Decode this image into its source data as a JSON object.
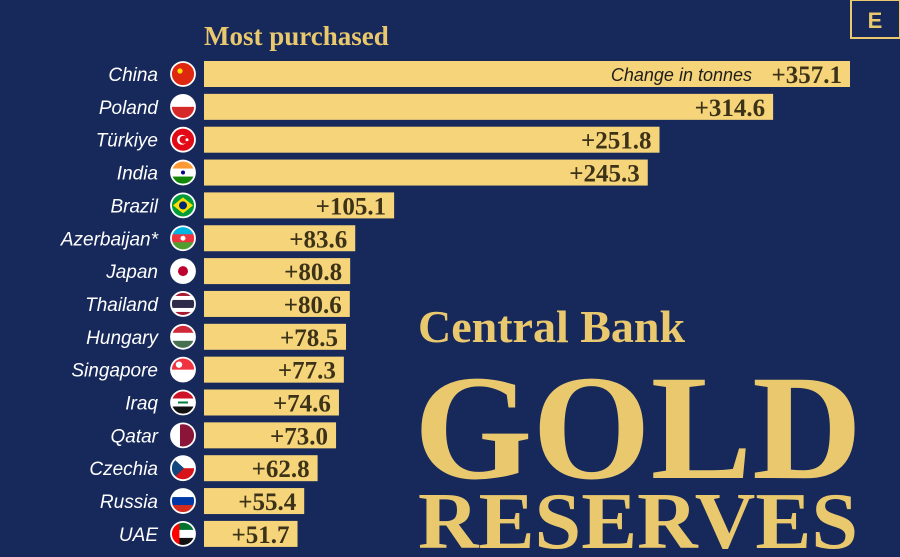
{
  "brand": {
    "logo_letter": "E"
  },
  "colors": {
    "background": "#17295a",
    "bar": "#f6d57a",
    "accent": "#eac96e"
  },
  "headline": "Most purchased",
  "title": {
    "line1": "Central Bank",
    "line2": "GOLD",
    "line3": "RESERVES"
  },
  "chart_data": {
    "type": "bar",
    "orientation": "horizontal",
    "title": "Most purchased",
    "value_label": "Change in tonnes",
    "categories": [
      "China",
      "Poland",
      "Türkiye",
      "India",
      "Brazil",
      "Azerbaijan*",
      "Japan",
      "Thailand",
      "Hungary",
      "Singapore",
      "Iraq",
      "Qatar",
      "Czechia",
      "Russia",
      "UAE"
    ],
    "values": [
      357.1,
      314.6,
      251.8,
      245.3,
      105.1,
      83.6,
      80.8,
      80.6,
      78.5,
      77.3,
      74.6,
      73.0,
      62.8,
      55.4,
      51.7
    ],
    "value_labels": [
      "+357.1",
      "+314.6",
      "+251.8",
      "+245.3",
      "+105.1",
      "+83.6",
      "+80.8",
      "+80.6",
      "+78.5",
      "+77.3",
      "+74.6",
      "+73.0",
      "+62.8",
      "+55.4",
      "+51.7"
    ],
    "flag_icons": [
      "china-flag-icon",
      "poland-flag-icon",
      "turkiye-flag-icon",
      "india-flag-icon",
      "brazil-flag-icon",
      "azerbaijan-flag-icon",
      "japan-flag-icon",
      "thailand-flag-icon",
      "hungary-flag-icon",
      "singapore-flag-icon",
      "iraq-flag-icon",
      "qatar-flag-icon",
      "czechia-flag-icon",
      "russia-flag-icon",
      "uae-flag-icon"
    ],
    "xlim": [
      0,
      357.1
    ],
    "grid": false,
    "legend": "none"
  }
}
